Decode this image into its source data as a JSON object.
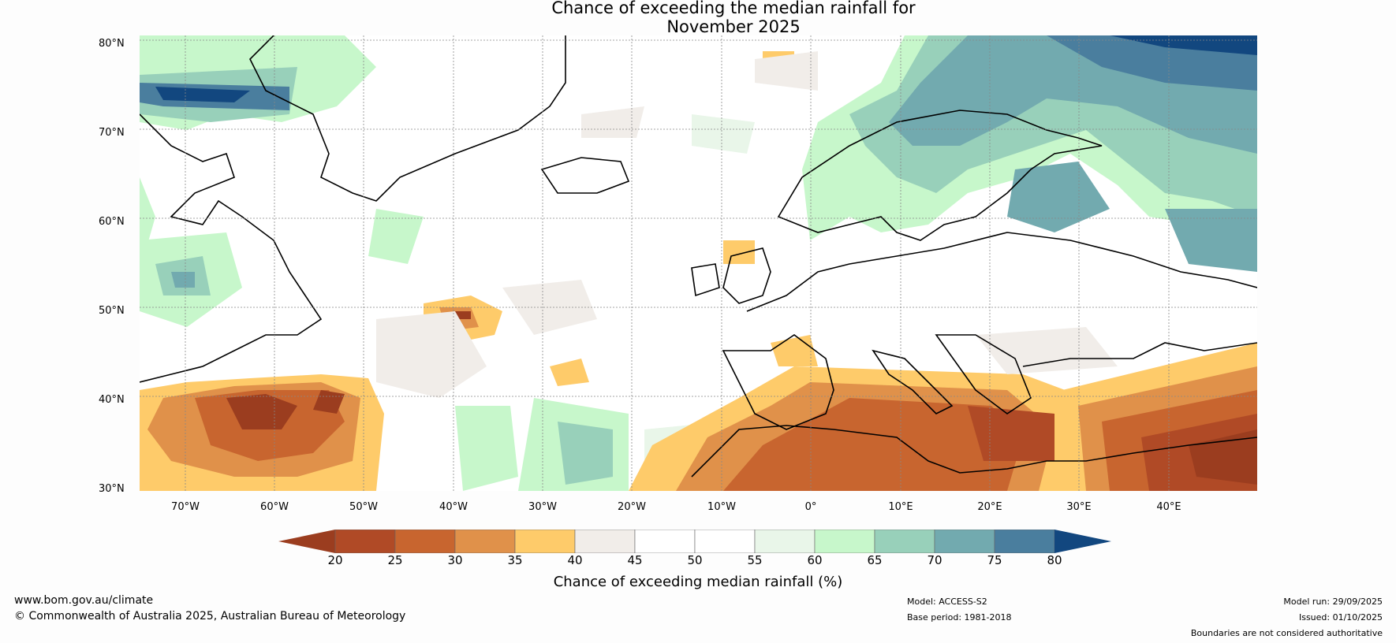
{
  "title_line1": "Chance of exceeding the median rainfall for",
  "title_line2": "November 2025",
  "latitude_labels": [
    "80°N",
    "70°N",
    "60°N",
    "50°N",
    "40°N",
    "30°N"
  ],
  "longitude_labels": [
    "70°W",
    "60°W",
    "50°W",
    "40°W",
    "30°W",
    "20°W",
    "10°W",
    "0°",
    "10°E",
    "20°E",
    "30°E",
    "40°E"
  ],
  "colorbar": {
    "title": "Chance of exceeding median rainfall (%)",
    "ticks": [
      "20",
      "25",
      "30",
      "35",
      "40",
      "45",
      "50",
      "55",
      "60",
      "65",
      "70",
      "75",
      "80"
    ],
    "colors": [
      "#9b3d1f",
      "#b04a26",
      "#c8652f",
      "#e0914a",
      "#fecb6a",
      "#f1ede9",
      "#ffffff",
      "#ffffff",
      "#e9f6e9",
      "#c7f7cb",
      "#98d0ba",
      "#72aaaf",
      "#4a7e9e",
      "#12477f"
    ]
  },
  "footer": {
    "website": "www.bom.gov.au/climate",
    "copyright": "© Commonwealth of Australia 2025, Australian Bureau of Meteorology",
    "model": "Model: ACCESS-S2",
    "base_period": "Base period: 1981-2018",
    "model_run": "Model run: 29/09/2025",
    "issued": "Issued: 01/10/2025",
    "disclaimer": "Boundaries are not considered authoritative"
  }
}
